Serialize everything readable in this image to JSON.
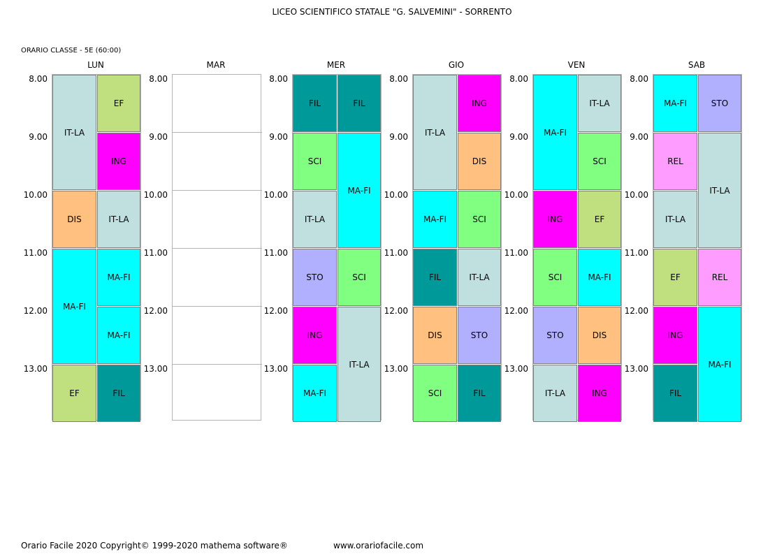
{
  "title": "LICEO SCIENTIFICO STATALE \"G. SALVEMINI\" - SORRENTO",
  "class_info": "ORARIO CLASSE  -  5E  (60:00)",
  "times": [
    "8.00",
    "9.00",
    "10.00",
    "11.00",
    "12.00",
    "13.00"
  ],
  "footer": {
    "left": "Orario Facile 2020  Copyright© 1999-2020 mathema software®",
    "url": "www.orariofacile.com"
  },
  "colors": {
    "IT-LA": "#c0e0e0",
    "EF": "#c0e080",
    "ING": "#ff00ff",
    "DIS": "#ffc080",
    "MA-FI": "#00ffff",
    "FIL": "#009999",
    "SCI": "#80ff80",
    "STO": "#b0b0ff",
    "REL": "#ff9cff"
  },
  "days": [
    {
      "name": "LUN",
      "cells": [
        {
          "subject": "IT-LA",
          "col": 0,
          "start": 0,
          "span": 2
        },
        {
          "subject": "EF",
          "col": 1,
          "start": 0,
          "span": 1
        },
        {
          "subject": "ING",
          "col": 1,
          "start": 1,
          "span": 1
        },
        {
          "subject": "DIS",
          "col": 0,
          "start": 2,
          "span": 1
        },
        {
          "subject": "IT-LA",
          "col": 1,
          "start": 2,
          "span": 1
        },
        {
          "subject": "MA-FI",
          "col": 0,
          "start": 3,
          "span": 2
        },
        {
          "subject": "MA-FI",
          "col": 1,
          "start": 3,
          "span": 1
        },
        {
          "subject": "MA-FI",
          "col": 1,
          "start": 4,
          "span": 1
        },
        {
          "subject": "EF",
          "col": 0,
          "start": 5,
          "span": 1
        },
        {
          "subject": "FIL",
          "col": 1,
          "start": 5,
          "span": 1
        }
      ]
    },
    {
      "name": "MAR",
      "empty": true,
      "cells": []
    },
    {
      "name": "MER",
      "cells": [
        {
          "subject": "FIL",
          "col": 0,
          "start": 0,
          "span": 1
        },
        {
          "subject": "FIL",
          "col": 1,
          "start": 0,
          "span": 1
        },
        {
          "subject": "SCI",
          "col": 0,
          "start": 1,
          "span": 1
        },
        {
          "subject": "MA-FI",
          "col": 1,
          "start": 1,
          "span": 2
        },
        {
          "subject": "IT-LA",
          "col": 0,
          "start": 2,
          "span": 1
        },
        {
          "subject": "STO",
          "col": 0,
          "start": 3,
          "span": 1
        },
        {
          "subject": "SCI",
          "col": 1,
          "start": 3,
          "span": 1
        },
        {
          "subject": "ING",
          "col": 0,
          "start": 4,
          "span": 1
        },
        {
          "subject": "IT-LA",
          "col": 1,
          "start": 4,
          "span": 2
        },
        {
          "subject": "MA-FI",
          "col": 0,
          "start": 5,
          "span": 1
        }
      ]
    },
    {
      "name": "GIO",
      "cells": [
        {
          "subject": "IT-LA",
          "col": 0,
          "start": 0,
          "span": 2
        },
        {
          "subject": "ING",
          "col": 1,
          "start": 0,
          "span": 1
        },
        {
          "subject": "DIS",
          "col": 1,
          "start": 1,
          "span": 1
        },
        {
          "subject": "MA-FI",
          "col": 0,
          "start": 2,
          "span": 1
        },
        {
          "subject": "SCI",
          "col": 1,
          "start": 2,
          "span": 1
        },
        {
          "subject": "FIL",
          "col": 0,
          "start": 3,
          "span": 1
        },
        {
          "subject": "IT-LA",
          "col": 1,
          "start": 3,
          "span": 1
        },
        {
          "subject": "DIS",
          "col": 0,
          "start": 4,
          "span": 1
        },
        {
          "subject": "STO",
          "col": 1,
          "start": 4,
          "span": 1
        },
        {
          "subject": "SCI",
          "col": 0,
          "start": 5,
          "span": 1
        },
        {
          "subject": "FIL",
          "col": 1,
          "start": 5,
          "span": 1
        }
      ]
    },
    {
      "name": "VEN",
      "cells": [
        {
          "subject": "MA-FI",
          "col": 0,
          "start": 0,
          "span": 2
        },
        {
          "subject": "IT-LA",
          "col": 1,
          "start": 0,
          "span": 1
        },
        {
          "subject": "SCI",
          "col": 1,
          "start": 1,
          "span": 1
        },
        {
          "subject": "ING",
          "col": 0,
          "start": 2,
          "span": 1
        },
        {
          "subject": "EF",
          "col": 1,
          "start": 2,
          "span": 1
        },
        {
          "subject": "SCI",
          "col": 0,
          "start": 3,
          "span": 1
        },
        {
          "subject": "MA-FI",
          "col": 1,
          "start": 3,
          "span": 1
        },
        {
          "subject": "STO",
          "col": 0,
          "start": 4,
          "span": 1
        },
        {
          "subject": "DIS",
          "col": 1,
          "start": 4,
          "span": 1
        },
        {
          "subject": "IT-LA",
          "col": 0,
          "start": 5,
          "span": 1
        },
        {
          "subject": "ING",
          "col": 1,
          "start": 5,
          "span": 1
        }
      ]
    },
    {
      "name": "SAB",
      "cells": [
        {
          "subject": "MA-FI",
          "col": 0,
          "start": 0,
          "span": 1
        },
        {
          "subject": "STO",
          "col": 1,
          "start": 0,
          "span": 1
        },
        {
          "subject": "REL",
          "col": 0,
          "start": 1,
          "span": 1
        },
        {
          "subject": "IT-LA",
          "col": 1,
          "start": 1,
          "span": 2
        },
        {
          "subject": "IT-LA",
          "col": 0,
          "start": 2,
          "span": 1
        },
        {
          "subject": "EF",
          "col": 0,
          "start": 3,
          "span": 1
        },
        {
          "subject": "REL",
          "col": 1,
          "start": 3,
          "span": 1
        },
        {
          "subject": "ING",
          "col": 0,
          "start": 4,
          "span": 1
        },
        {
          "subject": "MA-FI",
          "col": 1,
          "start": 4,
          "span": 2
        },
        {
          "subject": "FIL",
          "col": 0,
          "start": 5,
          "span": 1
        }
      ]
    }
  ]
}
